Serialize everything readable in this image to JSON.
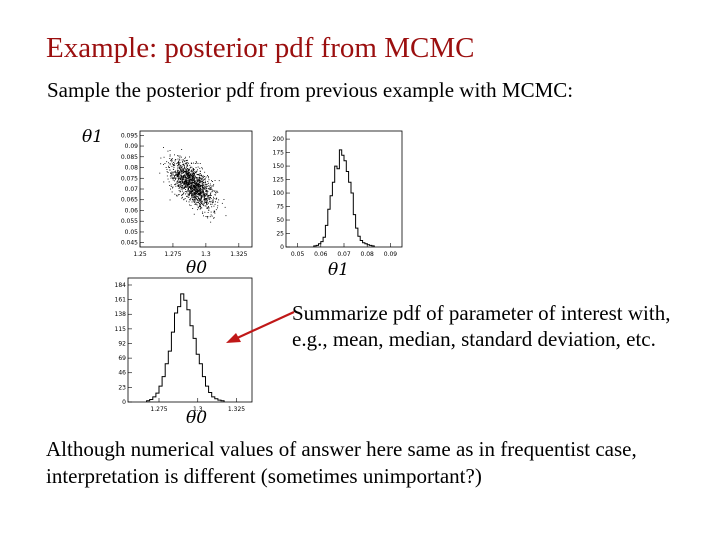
{
  "slide": {
    "title": "Example:  posterior pdf from MCMC",
    "subtitle": "Sample the posterior pdf from previous example with MCMC:",
    "summary": "Summarize pdf of parameter of interest with, e.g., mean, median, standard deviation, etc.",
    "bottom": "Although numerical values of answer here same as in frequentist case, interpretation is different (sometimes unimportant?)"
  },
  "axis_labels": {
    "scatter_y": "θ1",
    "scatter_x": "θ0",
    "hist1_x": "θ1",
    "hist0_x": "θ0"
  },
  "chart_data": [
    {
      "type": "scatter",
      "x_ticks": [
        "1.25",
        "1.275",
        "1.3",
        "1.325"
      ],
      "y_ticks": [
        "0.045",
        "0.05",
        "0.055",
        "0.06",
        "0.065",
        "0.07",
        "0.075",
        "0.08",
        "0.085",
        "0.09",
        "0.095"
      ],
      "xlim": [
        1.25,
        1.335
      ],
      "ylim": [
        0.043,
        0.097
      ],
      "center": [
        1.29,
        0.072
      ],
      "color": "#000000"
    },
    {
      "type": "bar",
      "x_ticks": [
        "0.05",
        "0.06",
        "0.07",
        "0.08",
        "0.09"
      ],
      "y_ticks": [
        "0",
        "25",
        "50",
        "75",
        "100",
        "125",
        "150",
        "175",
        "200"
      ],
      "xlim": [
        0.045,
        0.095
      ],
      "ylim": [
        0,
        215
      ],
      "bins_start": 0.057,
      "bin_width": 0.001,
      "values": [
        2,
        3,
        6,
        10,
        18,
        40,
        70,
        95,
        120,
        150,
        145,
        180,
        170,
        160,
        140,
        120,
        100,
        60,
        35,
        20,
        12,
        8,
        6,
        4,
        3,
        2
      ],
      "color": "#000000"
    },
    {
      "type": "bar",
      "x_ticks": [
        "1.275",
        "1.3",
        "1.325"
      ],
      "y_ticks": [
        "0",
        "23",
        "46",
        "69",
        "92",
        "115",
        "138",
        "161",
        "184"
      ],
      "xlim": [
        1.255,
        1.335
      ],
      "ylim": [
        0,
        195
      ],
      "bins_start": 1.267,
      "bin_width": 0.002,
      "values": [
        2,
        4,
        8,
        14,
        25,
        40,
        60,
        80,
        110,
        140,
        150,
        170,
        160,
        145,
        120,
        100,
        75,
        60,
        40,
        25,
        15,
        8,
        5,
        3,
        2
      ],
      "color": "#000000"
    }
  ]
}
